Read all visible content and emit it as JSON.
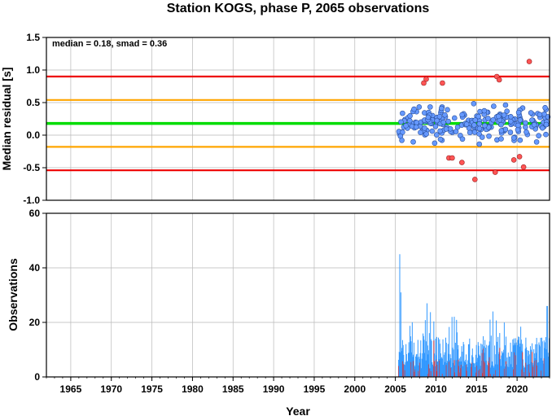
{
  "chart_data": [
    {
      "type": "scatter",
      "title": "Station KOGS, phase P, 2065 observations",
      "ylabel": "Median residual [s]",
      "annotation": "median = 0.18, smad = 0.36",
      "xlim": [
        1962,
        2024
      ],
      "ylim": [
        -1.0,
        1.5
      ],
      "x_ticks": [
        1965,
        1970,
        1975,
        1980,
        1985,
        1990,
        1995,
        2000,
        2005,
        2010,
        2015,
        2020
      ],
      "y_ticks": [
        "-1.0",
        "-0.5",
        "0.0",
        "0.5",
        "1.0",
        "1.5"
      ],
      "grid": true,
      "reference_lines": [
        {
          "y": 0.18,
          "color": "#00dd00"
        },
        {
          "y": 0.54,
          "color": "#ffa500"
        },
        {
          "y": -0.18,
          "color": "#ffa500"
        },
        {
          "y": 0.9,
          "color": "#ee0000"
        },
        {
          "y": -0.54,
          "color": "#ee0000"
        }
      ],
      "colors": {
        "inlier": "#6699ff",
        "outlier": "#ff5555"
      },
      "outliers": [
        [
          2008.5,
          0.8
        ],
        [
          2008.8,
          0.86
        ],
        [
          2010.8,
          0.8
        ],
        [
          2011.6,
          -0.35
        ],
        [
          2012.0,
          -0.35
        ],
        [
          2013.2,
          -0.42
        ],
        [
          2014.8,
          -0.68
        ],
        [
          2017.5,
          0.9
        ],
        [
          2017.8,
          0.85
        ],
        [
          2017.3,
          -0.57
        ],
        [
          2019.6,
          -0.38
        ],
        [
          2020.3,
          -0.33
        ],
        [
          2020.8,
          -0.49
        ],
        [
          2021.5,
          1.13
        ]
      ]
    },
    {
      "type": "bar",
      "ylabel": "Observations",
      "xlabel": "Year",
      "xlim": [
        1962,
        2024
      ],
      "ylim": [
        0,
        60
      ],
      "x_ticks": [
        1965,
        1970,
        1975,
        1980,
        1985,
        1990,
        1995,
        2000,
        2005,
        2010,
        2015,
        2020
      ],
      "y_ticks": [
        "0",
        "20",
        "40",
        "60"
      ],
      "grid": true,
      "colors": {
        "total": "#3399ff",
        "rejected": "#dd3333"
      },
      "peaks": [
        [
          2005.55,
          45
        ],
        [
          2005.7,
          31
        ],
        [
          2008.9,
          27
        ],
        [
          2012.0,
          22
        ],
        [
          2017.0,
          24
        ],
        [
          2023.7,
          26
        ]
      ]
    }
  ]
}
